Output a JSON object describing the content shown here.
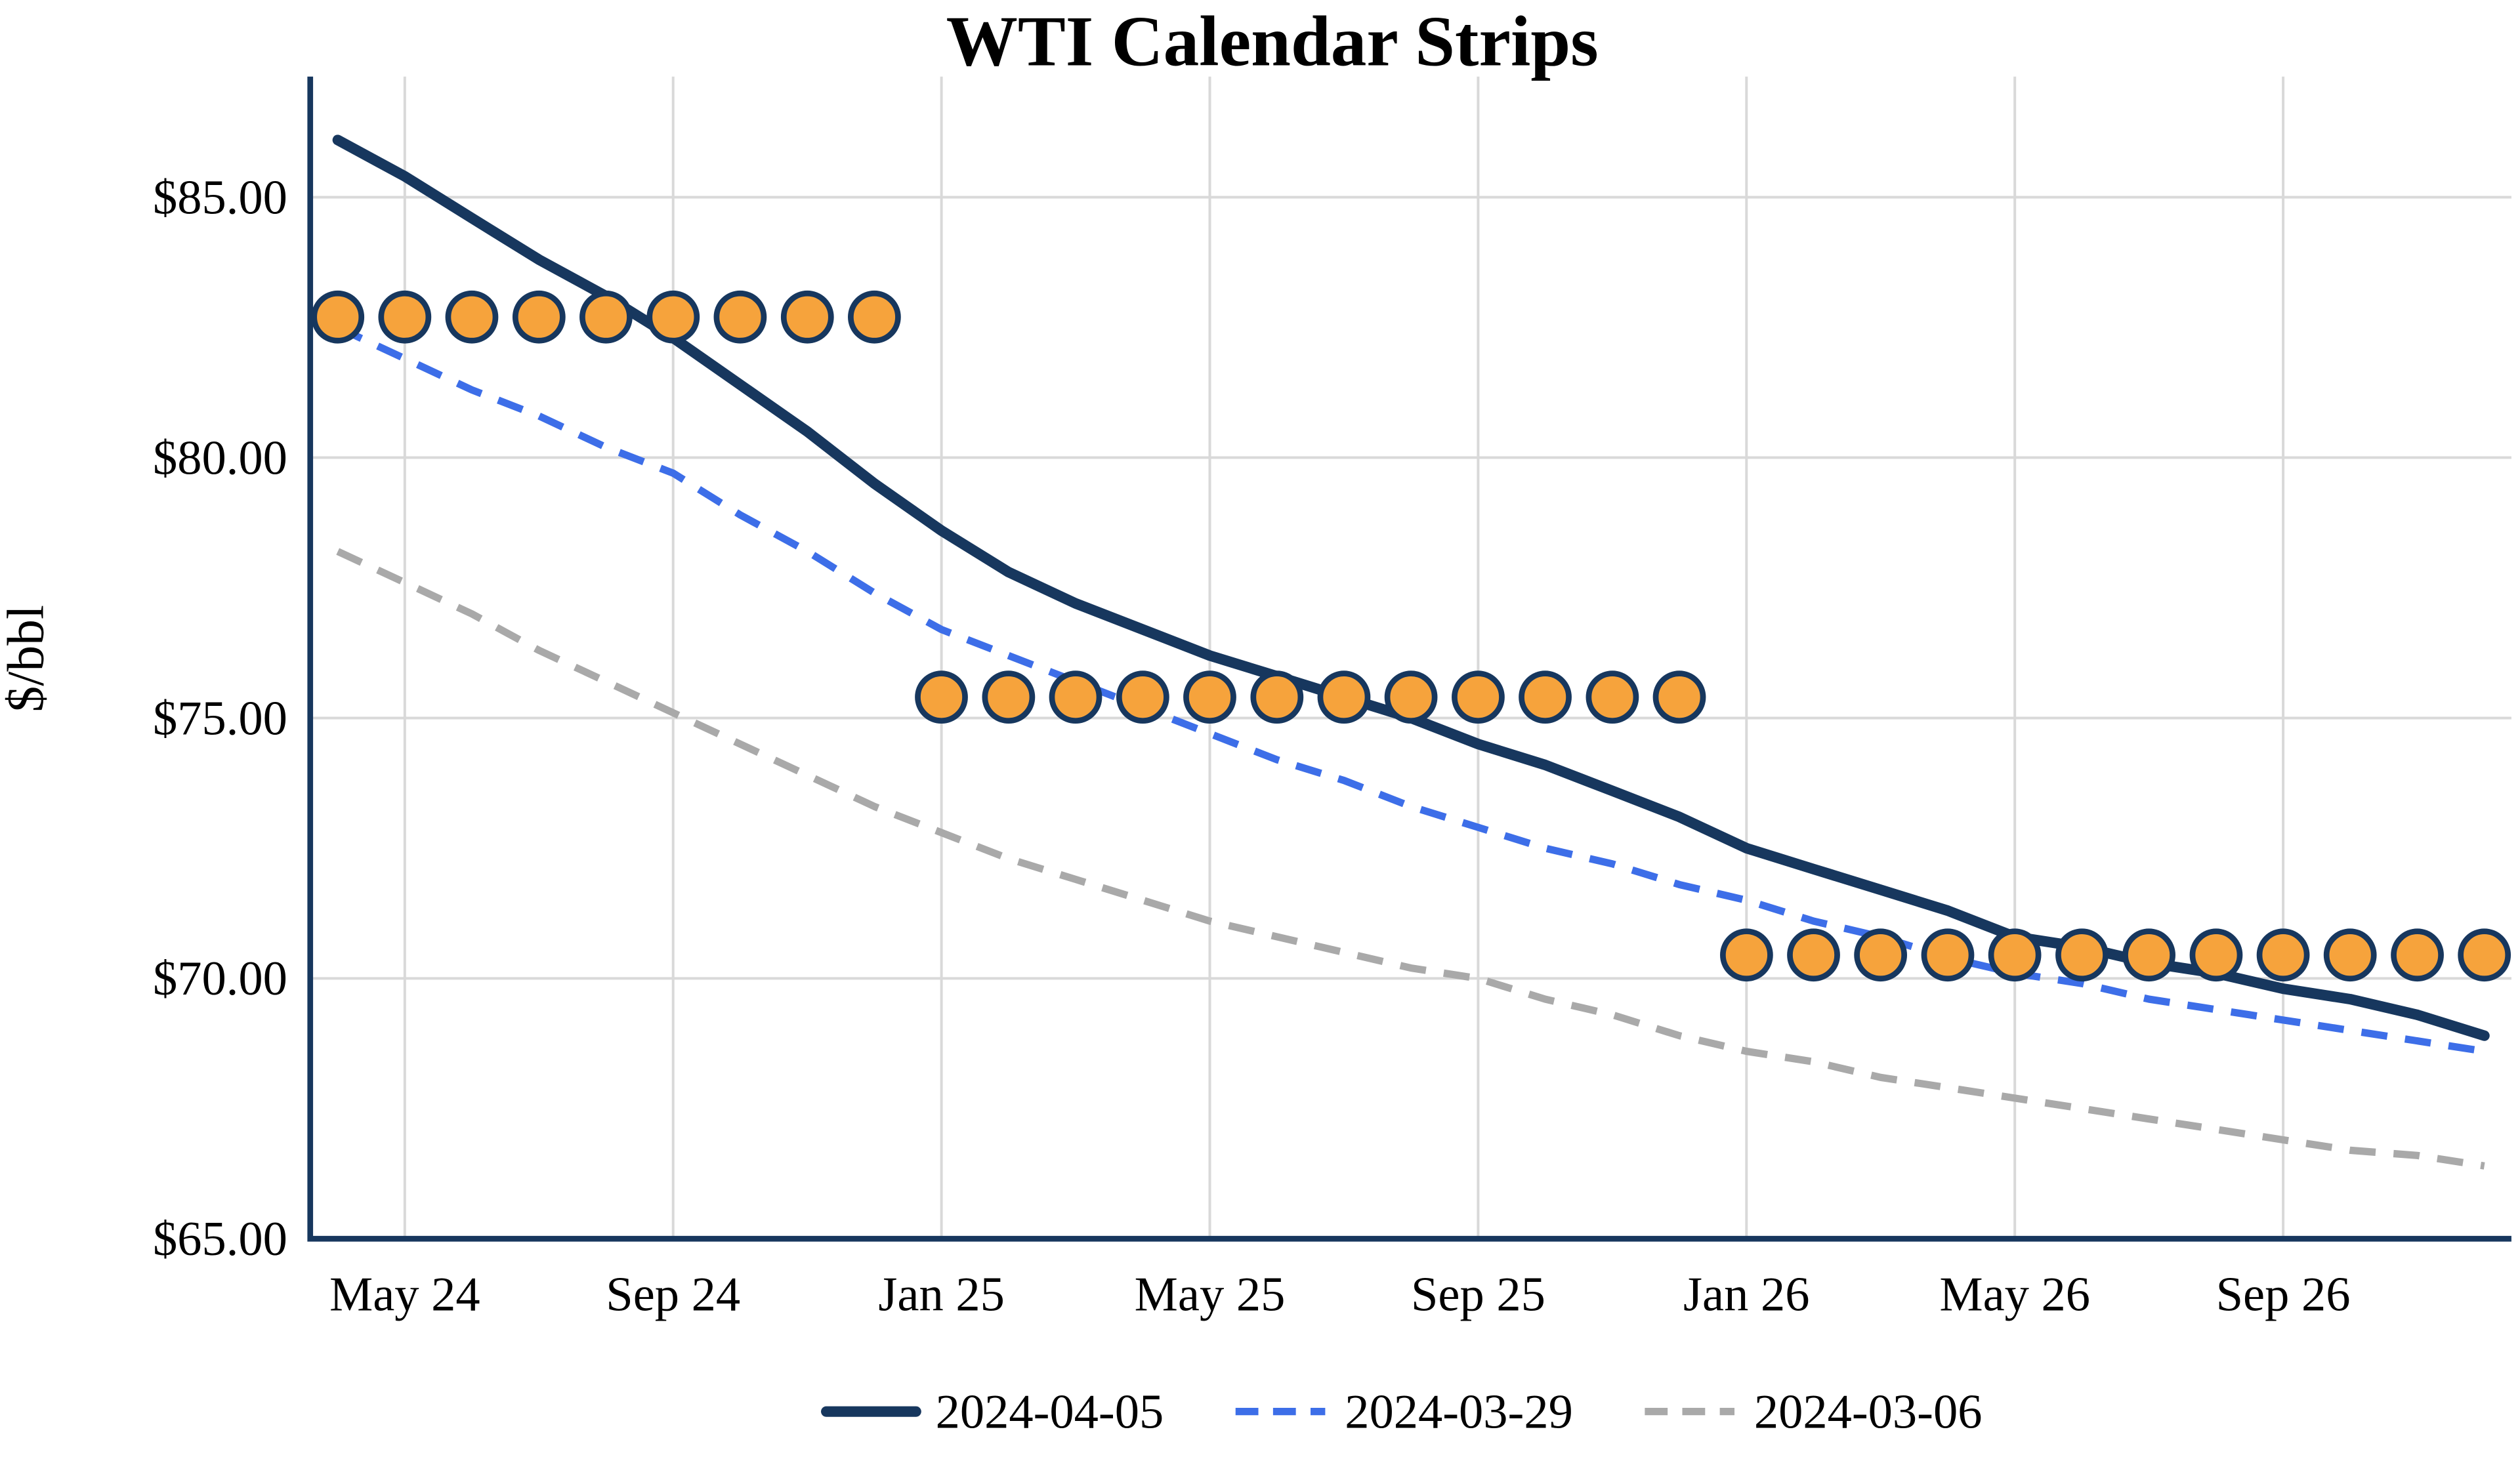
{
  "chart_data": {
    "type": "line",
    "title": "WTI Calendar Strips",
    "ylabel": "$/bbl",
    "xlabel": "",
    "ylim": [
      65,
      87.3
    ],
    "grid": true,
    "legend_position": "bottom-center",
    "axis_color": "#17375E",
    "grid_color": "#D9D9D9",
    "y_ticks": [
      {
        "value": 65,
        "label": "$65.00"
      },
      {
        "value": 70,
        "label": "$70.00"
      },
      {
        "value": 75,
        "label": "$75.00"
      },
      {
        "value": 80,
        "label": "$80.00"
      },
      {
        "value": 85,
        "label": "$85.00"
      }
    ],
    "x_ticks": [
      "May 24",
      "Sep 24",
      "Jan 25",
      "May 25",
      "Sep 25",
      "Jan 26",
      "May 26",
      "Sep 26"
    ],
    "months": [
      "Apr 24",
      "May 24",
      "Jun 24",
      "Jul 24",
      "Aug 24",
      "Sep 24",
      "Oct 24",
      "Nov 24",
      "Dec 24",
      "Jan 25",
      "Feb 25",
      "Mar 25",
      "Apr 25",
      "May 25",
      "Jun 25",
      "Jul 25",
      "Aug 25",
      "Sep 25",
      "Oct 25",
      "Nov 25",
      "Dec 25",
      "Jan 26",
      "Feb 26",
      "Mar 26",
      "Apr 26",
      "May 26",
      "Jun 26",
      "Jul 26",
      "Aug 26",
      "Sep 26",
      "Oct 26",
      "Nov 26",
      "Dec 26"
    ],
    "series": [
      {
        "name": "2024-04-05",
        "style": "solid",
        "color": "#17375E",
        "values": [
          86.1,
          85.4,
          84.6,
          83.8,
          83.1,
          82.3,
          81.4,
          80.5,
          79.5,
          78.6,
          77.8,
          77.2,
          76.7,
          76.2,
          75.8,
          75.4,
          75.0,
          74.5,
          74.1,
          73.6,
          73.1,
          72.5,
          72.1,
          71.7,
          71.3,
          70.8,
          70.6,
          70.3,
          70.1,
          69.8,
          69.6,
          69.3,
          68.9
        ]
      },
      {
        "name": "2024-03-29",
        "style": "dashed",
        "color": "#3D6EE8",
        "values": [
          82.5,
          81.9,
          81.3,
          80.8,
          80.2,
          79.7,
          78.9,
          78.2,
          77.4,
          76.7,
          76.2,
          75.7,
          75.2,
          74.7,
          74.2,
          73.8,
          73.3,
          72.9,
          72.5,
          72.2,
          71.8,
          71.5,
          71.1,
          70.8,
          70.4,
          70.1,
          69.9,
          69.6,
          69.4,
          69.2,
          69.0,
          68.8,
          68.6
        ]
      },
      {
        "name": "2024-03-06",
        "style": "dashed",
        "color": "#A9A9A9",
        "values": [
          78.2,
          77.6,
          77.0,
          76.3,
          75.7,
          75.1,
          74.5,
          73.9,
          73.3,
          72.8,
          72.3,
          71.9,
          71.5,
          71.1,
          70.8,
          70.5,
          70.2,
          70.0,
          69.6,
          69.3,
          68.9,
          68.6,
          68.4,
          68.1,
          67.9,
          67.7,
          67.5,
          67.3,
          67.1,
          66.9,
          66.7,
          66.6,
          66.4
        ]
      }
    ],
    "markers": {
      "shape": "circle",
      "fill": "#F6A33C",
      "outline": "#17375E",
      "strips": [
        {
          "from": "Apr 24",
          "to": "Dec 24",
          "value": 82.7
        },
        {
          "from": "Jan 25",
          "to": "Dec 25",
          "value": 75.4
        },
        {
          "from": "Jan 26",
          "to": "Dec 26",
          "value": 70.45
        }
      ]
    }
  }
}
